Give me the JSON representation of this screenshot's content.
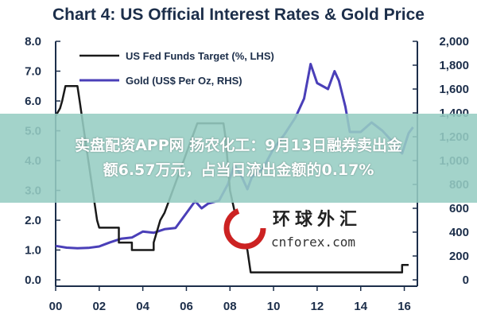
{
  "chart_data": {
    "type": "line",
    "title": "Chart 4: US Official Interest Rates & Gold Price",
    "x_tick_labels": [
      "00",
      "02",
      "04",
      "06",
      "08",
      "10",
      "12",
      "14",
      "16"
    ],
    "xlim": [
      2000,
      2016.6
    ],
    "y_left": {
      "ylim": [
        0,
        8
      ],
      "ticks": [
        0,
        1,
        2,
        3,
        4,
        5,
        6,
        7,
        8
      ],
      "tick_labels": [
        "0.0",
        "1.0",
        "2.0",
        "3.0",
        "4.0",
        "5.0",
        "6.0",
        "7.0",
        "8.0"
      ]
    },
    "y_right": {
      "ylim": [
        0,
        2000
      ],
      "ticks": [
        0,
        200,
        400,
        600,
        800,
        1000,
        1200,
        1400,
        1600,
        1800,
        2000
      ],
      "tick_labels": [
        "0",
        "200",
        "400",
        "600",
        "800",
        "1,000",
        "1,200",
        "1,400",
        "1,600",
        "1,800",
        "2,000"
      ]
    },
    "series": [
      {
        "name": "US Fed Funds Target (%, LHS)",
        "axis": "left",
        "color": "#1a1a1a",
        "points": [
          [
            2000.0,
            5.5
          ],
          [
            2000.2,
            5.75
          ],
          [
            2000.3,
            6.0
          ],
          [
            2000.45,
            6.5
          ],
          [
            2001.0,
            6.5
          ],
          [
            2001.1,
            6.0
          ],
          [
            2001.3,
            5.0
          ],
          [
            2001.5,
            4.0
          ],
          [
            2001.7,
            3.0
          ],
          [
            2001.9,
            2.0
          ],
          [
            2002.0,
            1.75
          ],
          [
            2002.9,
            1.75
          ],
          [
            2002.9,
            1.25
          ],
          [
            2003.5,
            1.25
          ],
          [
            2003.5,
            1.0
          ],
          [
            2004.5,
            1.0
          ],
          [
            2004.5,
            1.25
          ],
          [
            2004.8,
            2.0
          ],
          [
            2005.0,
            2.25
          ],
          [
            2005.5,
            3.25
          ],
          [
            2006.0,
            4.25
          ],
          [
            2006.5,
            5.25
          ],
          [
            2007.7,
            5.25
          ],
          [
            2007.8,
            4.75
          ],
          [
            2008.0,
            3.0
          ],
          [
            2008.3,
            2.0
          ],
          [
            2008.8,
            1.0
          ],
          [
            2008.95,
            0.25
          ],
          [
            2015.9,
            0.25
          ],
          [
            2015.9,
            0.5
          ],
          [
            2016.2,
            0.5
          ]
        ]
      },
      {
        "name": "Gold (US$ Per Oz, RHS)",
        "axis": "right",
        "color": "#4a3fb8",
        "points": [
          [
            2000.0,
            285
          ],
          [
            2000.5,
            270
          ],
          [
            2001.0,
            265
          ],
          [
            2001.5,
            268
          ],
          [
            2002.0,
            280
          ],
          [
            2002.5,
            315
          ],
          [
            2003.0,
            345
          ],
          [
            2003.5,
            355
          ],
          [
            2004.0,
            405
          ],
          [
            2004.5,
            395
          ],
          [
            2005.0,
            425
          ],
          [
            2005.5,
            435
          ],
          [
            2006.0,
            560
          ],
          [
            2006.4,
            660
          ],
          [
            2006.7,
            600
          ],
          [
            2007.0,
            640
          ],
          [
            2007.5,
            665
          ],
          [
            2007.9,
            800
          ],
          [
            2008.2,
            960
          ],
          [
            2008.5,
            880
          ],
          [
            2008.8,
            760
          ],
          [
            2009.0,
            860
          ],
          [
            2009.5,
            930
          ],
          [
            2010.0,
            1100
          ],
          [
            2010.5,
            1220
          ],
          [
            2011.0,
            1360
          ],
          [
            2011.4,
            1520
          ],
          [
            2011.7,
            1810
          ],
          [
            2012.0,
            1650
          ],
          [
            2012.5,
            1600
          ],
          [
            2012.8,
            1750
          ],
          [
            2013.0,
            1670
          ],
          [
            2013.3,
            1450
          ],
          [
            2013.5,
            1240
          ],
          [
            2014.0,
            1240
          ],
          [
            2014.5,
            1320
          ],
          [
            2015.0,
            1250
          ],
          [
            2015.5,
            1150
          ],
          [
            2015.9,
            1060
          ],
          [
            2016.2,
            1230
          ],
          [
            2016.4,
            1280
          ]
        ]
      }
    ],
    "legend": "top-left",
    "grid": false
  },
  "overlay": {
    "banner_lines": [
      "实盘配资APP网   扬农化工：9月13日融券卖出金",
      "额6.57万元，占当日流出金额的0.17%"
    ],
    "watermark_cn": "环球外汇",
    "watermark_en": "cnforex.com"
  }
}
